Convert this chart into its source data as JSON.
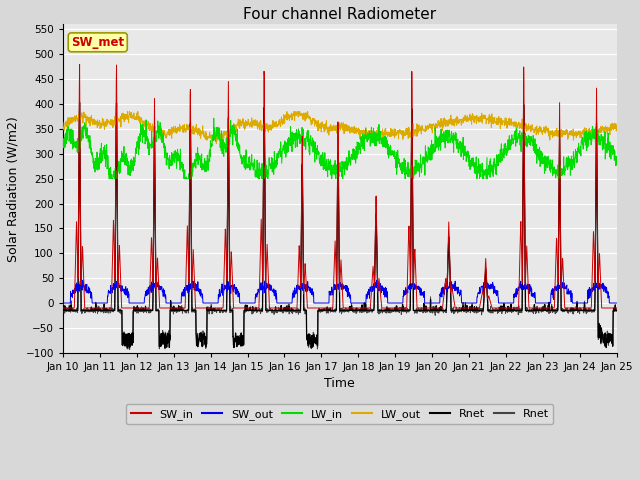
{
  "title": "Four channel Radiometer",
  "xlabel": "Time",
  "ylabel": "Solar Radiation (W/m2)",
  "annotation": "SW_met",
  "n_days": 15,
  "ylim": [
    -100,
    560
  ],
  "yticks": [
    -100,
    -50,
    0,
    50,
    100,
    150,
    200,
    250,
    300,
    350,
    400,
    450,
    500,
    550
  ],
  "x_tick_labels": [
    "Jan 10",
    "Jan 11",
    "Jan 12",
    "Jan 13",
    "Jan 14",
    "Jan 15",
    "Jan 16",
    "Jan 17",
    "Jan 18",
    "Jan 19",
    "Jan 20",
    "Jan 21",
    "Jan 22",
    "Jan 23",
    "Jan 24",
    "Jan 25"
  ],
  "colors": {
    "SW_in": "#cc0000",
    "SW_out": "#0000ee",
    "LW_in": "#00dd00",
    "LW_out": "#ddaa00",
    "Rnet_black": "#000000",
    "Rnet_dark": "#444444"
  },
  "legend_colors": [
    "#cc0000",
    "#0000ee",
    "#00dd00",
    "#ddaa00",
    "#000000",
    "#444444"
  ],
  "background_color": "#d8d8d8",
  "plot_bg": "#e8e8e8",
  "grid_color": "#ffffff",
  "figsize": [
    6.4,
    4.8
  ],
  "dpi": 100
}
